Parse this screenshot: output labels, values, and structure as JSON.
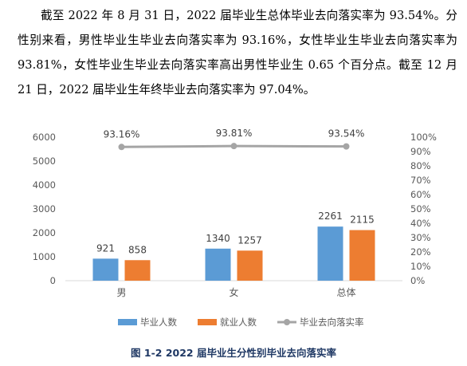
{
  "document": {
    "paragraph": "截至 2022 年 8 月 31 日，2022 届毕业生总体毕业去向落实率为 93.54%。分性别来看，男性毕业生毕业去向落实率为 93.16%，女性毕业生毕业去向落实率为 93.81%，女性毕业生毕业去向落实率高出男性毕业生 0.65 个百分点。截至 12 月 21 日，2022 届毕业生年终毕业去向落实率为 97.04%。",
    "caption": "图 1-2 2022 届毕业生分性别毕业去向落实率"
  },
  "chart_data": {
    "type": "bar",
    "categories": [
      "男",
      "女",
      "总体"
    ],
    "series": [
      {
        "name": "毕业人数",
        "kind": "bar",
        "axis": "left",
        "color": "#5b9bd5",
        "values": [
          921,
          1340,
          2261
        ]
      },
      {
        "name": "就业人数",
        "kind": "bar",
        "axis": "left",
        "color": "#ed7d31",
        "values": [
          858,
          1257,
          2115
        ]
      },
      {
        "name": "毕业去向落实率",
        "kind": "line",
        "axis": "right",
        "color": "#a5a5a5",
        "values": [
          93.16,
          93.81,
          93.54
        ]
      }
    ],
    "bar_labels": [
      [
        "921",
        "1340",
        "2261"
      ],
      [
        "858",
        "1257",
        "2115"
      ]
    ],
    "line_labels": [
      "93.16%",
      "93.81%",
      "93.54%"
    ],
    "ylim": [
      0,
      6000
    ],
    "y_ticks": [
      "0",
      "1000",
      "2000",
      "3000",
      "4000",
      "5000",
      "6000"
    ],
    "y2lim": [
      0,
      100
    ],
    "y2_ticks": [
      "0%",
      "10%",
      "20%",
      "30%",
      "40%",
      "50%",
      "60%",
      "70%",
      "80%",
      "90%",
      "100%"
    ],
    "grid": false,
    "legend": "bottom"
  }
}
